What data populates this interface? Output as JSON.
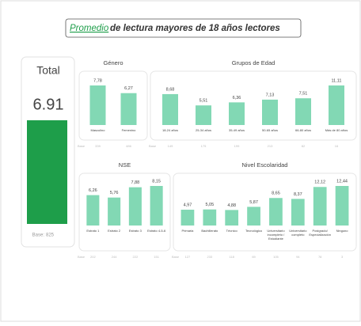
{
  "header": {
    "highlight": "Promedio",
    "title": "de lectura mayores de 18 años lectores"
  },
  "total": {
    "label": "Total",
    "value": 6.91,
    "base_label": "Base:",
    "base": 825,
    "color": "#1e9e4a"
  },
  "chart_data": [
    {
      "type": "bar",
      "title": "Género",
      "categories": [
        "Masculino",
        "Femenino"
      ],
      "values": [
        7.78,
        6.27
      ],
      "value_labels": [
        "7,78",
        "6,27"
      ],
      "base_label": "Base",
      "bases": [
        339,
        486
      ],
      "color": "#82d8b4"
    },
    {
      "type": "bar",
      "title": "Grupos de Edad",
      "categories": [
        "18-24 años",
        "25-34 años",
        "35-49 años",
        "50-65 años",
        "66-80 años",
        "Más de 80 años"
      ],
      "values": [
        8.68,
        5.51,
        6.36,
        7.13,
        7.51,
        11.11
      ],
      "value_labels": [
        "8,68",
        "5,51",
        "6,36",
        "7,13",
        "7,51",
        "11,11"
      ],
      "base_label": "Base",
      "bases": [
        149,
        175,
        199,
        213,
        82,
        16
      ],
      "color": "#82d8b4"
    },
    {
      "type": "bar",
      "title": "NSE",
      "categories": [
        "Estrato 1",
        "Estrato 2",
        "Estrato 3",
        "Estrato 4-5-6"
      ],
      "values": [
        6.26,
        5.76,
        7.88,
        8.15
      ],
      "value_labels": [
        "6,26",
        "5,76",
        "7,88",
        "8,15"
      ],
      "base_label": "Base",
      "bases": [
        202,
        244,
        222,
        151
      ],
      "color": "#82d8b4"
    },
    {
      "type": "bar",
      "title": "Nivel Escolaridad",
      "categories": [
        "Primaria",
        "Bachillerato",
        "Técnico",
        "Tecnológico",
        "Universitario incompleto / Estudiante",
        "Universitario completo",
        "Postgrado/ Especialización",
        "Ninguno"
      ],
      "values": [
        4.97,
        5.05,
        4.88,
        5.87,
        8.65,
        8.37,
        12.12,
        12.44
      ],
      "value_labels": [
        "4,97",
        "5,05",
        "4,88",
        "5,87",
        "8,65",
        "8,37",
        "12,12",
        "12,44"
      ],
      "base_label": "Base",
      "bases": [
        127,
        233,
        118,
        69,
        105,
        94,
        78,
        3
      ],
      "color": "#82d8b4"
    }
  ]
}
